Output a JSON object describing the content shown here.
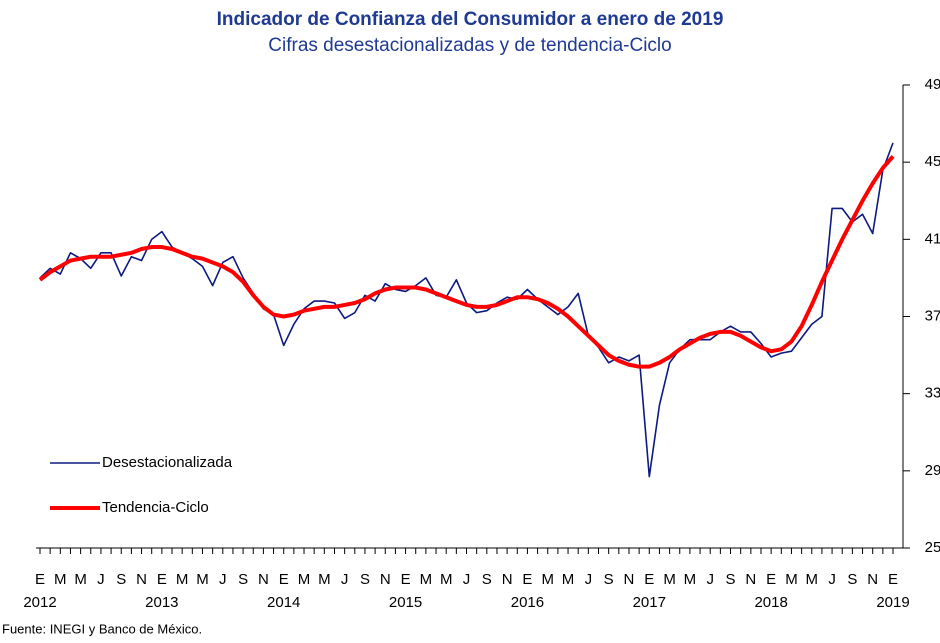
{
  "chart_data": {
    "type": "line",
    "title": "Indicador de Confianza del Consumidor a enero de 2019",
    "subtitle": "Cifras desestacionalizadas y de tendencia-Ciclo",
    "source": "Fuente: INEGI y Banco de México.",
    "categories": [
      "E",
      null,
      "M",
      null,
      "M",
      null,
      "J",
      null,
      "S",
      null,
      "N",
      null,
      "E",
      null,
      "M",
      null,
      "M",
      null,
      "J",
      null,
      "S",
      null,
      "N",
      null,
      "E",
      null,
      "M",
      null,
      "M",
      null,
      "J",
      null,
      "S",
      null,
      "N",
      null,
      "E",
      null,
      "M",
      null,
      "M",
      null,
      "J",
      null,
      "S",
      null,
      "N",
      null,
      "E",
      null,
      "M",
      null,
      "M",
      null,
      "J",
      null,
      "S",
      null,
      "N",
      null,
      "E",
      null,
      "M",
      null,
      "M",
      null,
      "J",
      null,
      "S",
      null,
      "N",
      null,
      "E",
      null,
      "M",
      null,
      "M",
      null,
      "J",
      null,
      "S",
      null,
      "N",
      null,
      "E"
    ],
    "years": [
      "2012",
      "2013",
      "2014",
      "2015",
      "2016",
      "2017",
      "2018",
      "2019"
    ],
    "ylim": [
      25,
      49
    ],
    "yticks": [
      25,
      29,
      33,
      37,
      41,
      45,
      49
    ],
    "legend": "lower left",
    "series": [
      {
        "name": "Desestacionalizada",
        "color": "#0d1a80",
        "width": 1.6,
        "values": [
          39.0,
          39.5,
          39.2,
          40.3,
          40.0,
          39.5,
          40.3,
          40.3,
          39.1,
          40.1,
          39.9,
          41.0,
          41.4,
          40.6,
          40.3,
          40.0,
          39.6,
          38.6,
          39.8,
          40.1,
          39.0,
          38.2,
          37.4,
          37.1,
          35.5,
          36.6,
          37.4,
          37.8,
          37.8,
          37.7,
          36.9,
          37.2,
          38.1,
          37.8,
          38.7,
          38.4,
          38.3,
          38.6,
          39.0,
          38.1,
          38.0,
          38.9,
          37.7,
          37.2,
          37.3,
          37.7,
          38.0,
          37.9,
          38.4,
          37.9,
          37.5,
          37.1,
          37.5,
          38.2,
          36.0,
          35.4,
          34.6,
          34.9,
          34.7,
          35.0,
          28.7,
          32.4,
          34.6,
          35.3,
          35.8,
          35.8,
          35.8,
          36.2,
          36.5,
          36.2,
          36.2,
          35.6,
          34.9,
          35.1,
          35.2,
          35.9,
          36.6,
          37.0,
          42.6,
          42.6,
          41.9,
          42.3,
          41.3,
          44.6,
          46.0
        ]
      },
      {
        "name": "Tendencia-Ciclo",
        "color": "#ff0000",
        "width": 4,
        "values": [
          38.9,
          39.3,
          39.6,
          39.9,
          40.0,
          40.1,
          40.1,
          40.1,
          40.2,
          40.3,
          40.5,
          40.6,
          40.6,
          40.5,
          40.3,
          40.1,
          40.0,
          39.8,
          39.6,
          39.3,
          38.8,
          38.1,
          37.5,
          37.1,
          37.0,
          37.1,
          37.3,
          37.4,
          37.5,
          37.5,
          37.6,
          37.7,
          37.9,
          38.2,
          38.4,
          38.5,
          38.5,
          38.5,
          38.4,
          38.2,
          38.0,
          37.8,
          37.6,
          37.5,
          37.5,
          37.6,
          37.8,
          38.0,
          38.0,
          37.9,
          37.7,
          37.4,
          37.0,
          36.5,
          36.0,
          35.5,
          35.0,
          34.7,
          34.5,
          34.4,
          34.4,
          34.6,
          34.9,
          35.3,
          35.6,
          35.9,
          36.1,
          36.2,
          36.2,
          36.0,
          35.7,
          35.4,
          35.2,
          35.3,
          35.7,
          36.5,
          37.6,
          38.8,
          39.9,
          41.0,
          42.0,
          43.0,
          43.9,
          44.7,
          45.3
        ]
      }
    ]
  }
}
